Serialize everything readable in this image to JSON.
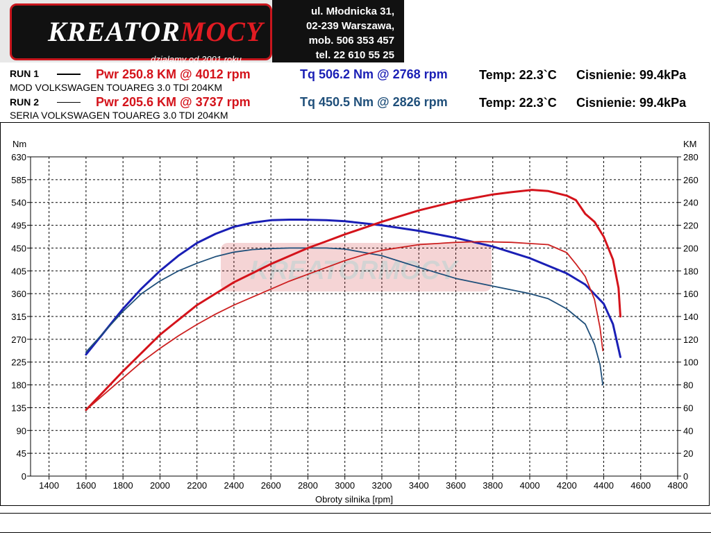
{
  "logo": {
    "brand_white": "KREATOR",
    "brand_red": "MOCY",
    "tagline": "działamy od 2001 roku"
  },
  "address": {
    "line1": "ul. Młodnicka 31,",
    "line2": "02-239  Warszawa,",
    "line3": "mob.  506 353 457",
    "line4": "tel.  22 610 55 25"
  },
  "runs": [
    {
      "label": "RUN 1",
      "pwr": "Pwr  250.8 KM @ 4012 rpm",
      "tq": "Tq 506.2 Nm @ 2768 rpm",
      "temp": "Temp: 22.3`C",
      "press": "Cisnienie: 99.4kPa",
      "car": "MOD VOLKSWAGEN TOUAREG 3.0 TDI 204KM"
    },
    {
      "label": "RUN 2",
      "pwr": "Pwr  205.6 KM @ 3737 rpm",
      "tq": "Tq 450.5 Nm @ 2826 rpm",
      "temp": "Temp: 22.3`C",
      "press": "Cisnienie: 99.4kPa",
      "car": "SERIA VOLKSWAGEN TOUAREG 3.0 TDI 204KM"
    }
  ],
  "colors": {
    "pwr": "#d4131b",
    "tq_run1": "#1a1fb5",
    "tq_run2": "#1f4f7a",
    "pwr_run2": "#cc2020"
  },
  "chart_data": {
    "type": "line",
    "xlabel": "Obroty silnika [rpm]",
    "y_left_label": "Nm",
    "y_right_label": "KM",
    "xlim": [
      1300,
      4800
    ],
    "ylim_left": [
      0,
      630
    ],
    "ylim_right": [
      0,
      280
    ],
    "x_ticks": [
      1400,
      1600,
      1800,
      2000,
      2200,
      2400,
      2600,
      2800,
      3000,
      3200,
      3400,
      3600,
      3800,
      4000,
      4200,
      4400,
      4600,
      4800
    ],
    "y_left_ticks": [
      0,
      45,
      90,
      135,
      180,
      225,
      270,
      315,
      360,
      405,
      450,
      495,
      540,
      585,
      630
    ],
    "y_right_ticks": [
      0,
      20,
      40,
      60,
      80,
      100,
      120,
      140,
      160,
      180,
      200,
      220,
      240,
      260,
      280
    ],
    "grid": true,
    "series": [
      {
        "name": "RUN 1",
        "quantity": "Tq",
        "axis": "left",
        "x": [
          1600,
          1700,
          1800,
          1900,
          2000,
          2100,
          2200,
          2300,
          2400,
          2500,
          2600,
          2700,
          2768,
          2900,
          3000,
          3200,
          3400,
          3600,
          3800,
          4000,
          4200,
          4300,
          4400,
          4450,
          4490
        ],
        "y": [
          240,
          285,
          330,
          370,
          405,
          435,
          460,
          478,
          492,
          500,
          505,
          506,
          506,
          505,
          503,
          495,
          484,
          470,
          453,
          430,
          400,
          378,
          340,
          300,
          235
        ]
      },
      {
        "name": "RUN 2",
        "quantity": "Tq",
        "axis": "left",
        "x": [
          1600,
          1700,
          1800,
          1900,
          2000,
          2100,
          2200,
          2300,
          2400,
          2500,
          2600,
          2700,
          2826,
          2900,
          3000,
          3200,
          3400,
          3600,
          3800,
          4000,
          4100,
          4200,
          4250,
          4300,
          4350,
          4380,
          4395
        ],
        "y": [
          245,
          285,
          325,
          360,
          385,
          405,
          420,
          433,
          442,
          447,
          449,
          450,
          450,
          450,
          448,
          435,
          412,
          390,
          375,
          360,
          350,
          330,
          315,
          300,
          260,
          220,
          180
        ]
      },
      {
        "name": "RUN 1",
        "quantity": "Pwr",
        "axis": "right",
        "x": [
          1600,
          1700,
          1800,
          1900,
          2000,
          2100,
          2200,
          2300,
          2400,
          2500,
          2600,
          2700,
          2800,
          2900,
          3000,
          3200,
          3400,
          3600,
          3800,
          3900,
          4012,
          4100,
          4200,
          4250,
          4300,
          4350,
          4400,
          4450,
          4480,
          4490
        ],
        "y": [
          58,
          75,
          92,
          108,
          124,
          137,
          150,
          160,
          170,
          178,
          186,
          193,
          200,
          206,
          212,
          223,
          233,
          241,
          247,
          249,
          251,
          250,
          246,
          242,
          230,
          223,
          210,
          190,
          165,
          140
        ]
      },
      {
        "name": "RUN 2",
        "quantity": "Pwr",
        "axis": "right",
        "x": [
          1600,
          1700,
          1800,
          1900,
          2000,
          2100,
          2200,
          2300,
          2400,
          2500,
          2600,
          2700,
          2800,
          2900,
          3000,
          3100,
          3200,
          3400,
          3600,
          3737,
          3900,
          4000,
          4100,
          4200,
          4250,
          4300,
          4350,
          4380,
          4395
        ],
        "y": [
          58,
          72,
          86,
          100,
          112,
          123,
          133,
          142,
          150,
          157,
          164,
          171,
          177,
          183,
          189,
          194,
          198,
          203,
          205,
          205.6,
          205,
          204,
          203,
          196,
          186,
          175,
          155,
          130,
          110
        ]
      }
    ]
  }
}
